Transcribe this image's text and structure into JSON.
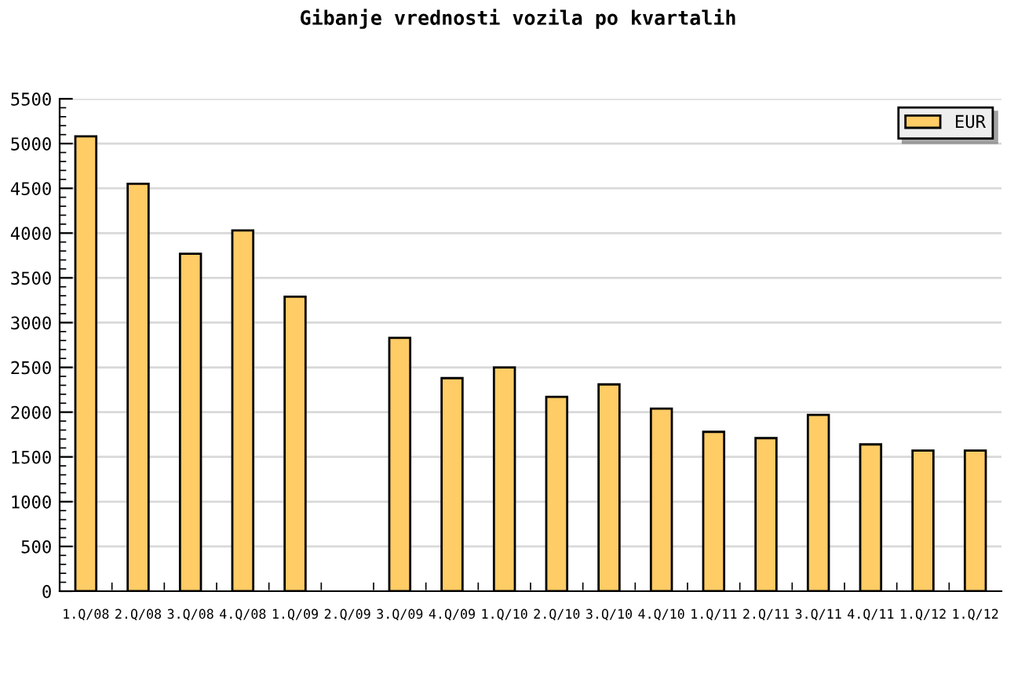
{
  "chart_data": {
    "type": "bar",
    "title": "Gibanje vrednosti vozila po kvartalih",
    "categories": [
      "1.Q/08",
      "2.Q/08",
      "3.Q/08",
      "4.Q/08",
      "1.Q/09",
      "2.Q/09",
      "3.Q/09",
      "4.Q/09",
      "1.Q/10",
      "2.Q/10",
      "3.Q/10",
      "4.Q/10",
      "1.Q/11",
      "2.Q/11",
      "3.Q/11",
      "4.Q/11",
      "1.Q/12",
      "1.Q/12"
    ],
    "series": [
      {
        "name": "EUR",
        "color": "#ffcc66",
        "values": [
          5080,
          4550,
          3770,
          4030,
          3290,
          null,
          2830,
          2380,
          2500,
          2170,
          2310,
          2040,
          1780,
          1710,
          1970,
          1640,
          1570,
          1570
        ]
      }
    ],
    "ylim": [
      0,
      5500
    ],
    "yticks": [
      0,
      500,
      1000,
      1500,
      2000,
      2500,
      3000,
      3500,
      4000,
      4500,
      5000,
      5500
    ],
    "grid": "y",
    "legend": "top right"
  }
}
